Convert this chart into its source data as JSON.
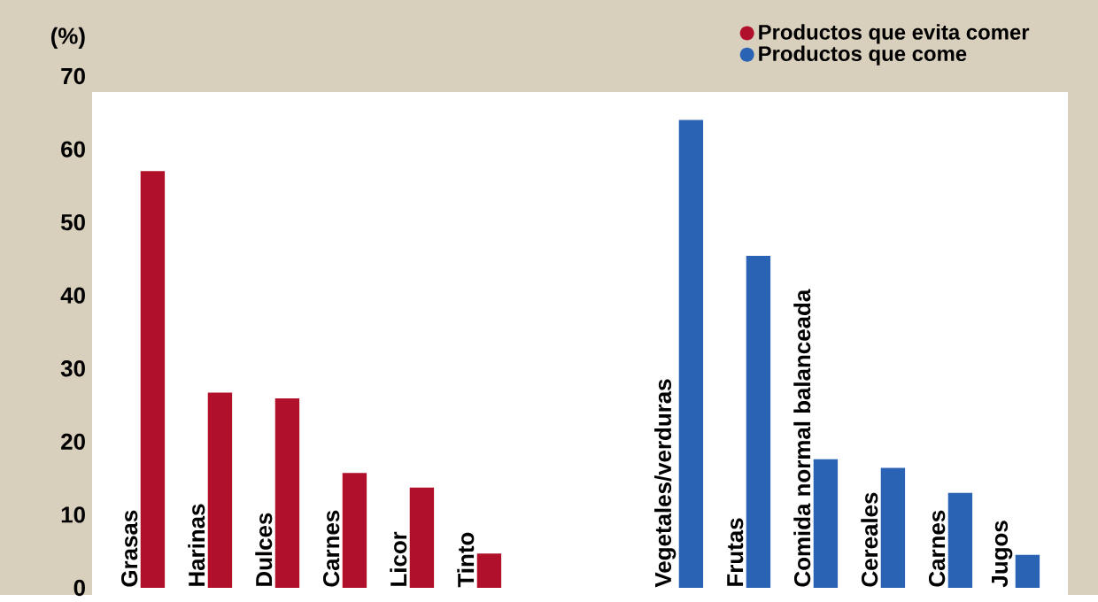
{
  "chart_data": {
    "type": "bar",
    "ylabel": "(%)",
    "categories": [
      "Grasas",
      "Harinas",
      "Dulces",
      "Carnes",
      "Licor",
      "Tinto",
      null,
      null,
      "Vegetales/verduras",
      "Frutas",
      "Comida normal balanceada",
      "Cereales",
      "Carnes",
      "Jugos"
    ],
    "series": [
      {
        "name": "Productos que evita comer",
        "color": "#b0102a",
        "values": [
          57,
          26.7,
          25.9,
          15.7,
          13.7,
          4.7,
          null,
          null,
          null,
          null,
          null,
          null,
          null,
          null
        ]
      },
      {
        "name": "Productos que come",
        "color": "#2a62b4",
        "values": [
          null,
          null,
          null,
          null,
          null,
          null,
          null,
          null,
          64,
          45.4,
          17.6,
          16.4,
          13,
          4.5
        ]
      }
    ],
    "ylim": [
      0,
      70
    ],
    "yticks": [
      0,
      10,
      20,
      30,
      40,
      50,
      60,
      70
    ],
    "legend": "top right"
  }
}
